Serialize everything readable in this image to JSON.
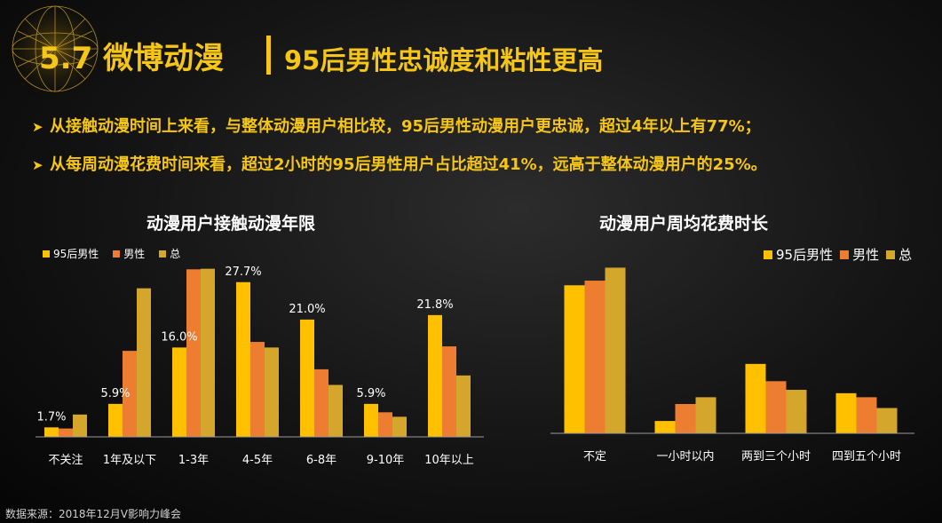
{
  "header": {
    "section": "5.7 微博动漫",
    "subtitle": "95后男性忠诚度和粘性更高"
  },
  "bullets": [
    "从接触动漫时间上来看，与整体动漫用户相比较，95后男性动漫用户更忠诚，超过4年以上有77%；",
    "从每周动漫花费时间来看，超过2小时的95后男性用户占比超过41%，远高于整体动漫用户的25%。"
  ],
  "bullet_marker": "➤",
  "colors": {
    "accent": "#f5c518",
    "series": [
      "#ffc000",
      "#ed7d31",
      "#d4a72c"
    ]
  },
  "chart_data": [
    {
      "type": "bar",
      "title": "动漫用户接触动漫年限",
      "legend": "top-left",
      "categories": [
        "不关注",
        "1年及以下",
        "1-3年",
        "4-5年",
        "6-8年",
        "9-10年",
        "10年以上"
      ],
      "series": [
        {
          "name": "95后男性",
          "values": [
            1.7,
            5.9,
            16.0,
            27.7,
            21.0,
            5.9,
            21.8
          ]
        },
        {
          "name": "男性",
          "values": [
            1.5,
            15.4,
            30.0,
            17.0,
            12.1,
            4.4,
            16.2
          ]
        },
        {
          "name": "总",
          "values": [
            4.0,
            26.6,
            30.1,
            16.0,
            9.3,
            3.6,
            11.0
          ]
        }
      ],
      "data_labels": [
        "1.7%",
        "5.9%",
        "16.0%",
        "27.7%",
        "21.0%",
        "5.9%",
        "21.8%"
      ],
      "ylim": [
        0,
        31
      ],
      "grid": false
    },
    {
      "type": "bar",
      "title": "动漫用户周均花费时长",
      "legend": "top-right",
      "categories": [
        "不定",
        "一小时以内",
        "两到三个小时",
        "四到五个小时"
      ],
      "series": [
        {
          "name": "95后男性",
          "values": [
            48.0,
            4.0,
            22.5,
            13.0
          ]
        },
        {
          "name": "男性",
          "values": [
            49.5,
            9.5,
            16.9,
            11.7
          ]
        },
        {
          "name": "总",
          "values": [
            53.7,
            11.7,
            14.1,
            8.2
          ]
        }
      ],
      "ylim": [
        0,
        57
      ],
      "grid": false
    }
  ],
  "source": "数据来源：2018年12月V影响力峰会"
}
